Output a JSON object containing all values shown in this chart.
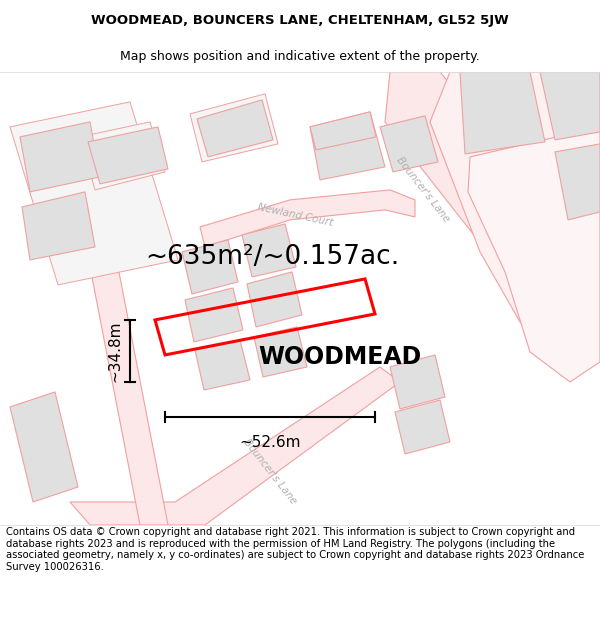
{
  "title_line1": "WOODMEAD, BOUNCERS LANE, CHELTENHAM, GL52 5JW",
  "title_line2": "Map shows position and indicative extent of the property.",
  "footer_text": "Contains OS data © Crown copyright and database right 2021. This information is subject to Crown copyright and database rights 2023 and is reproduced with the permission of HM Land Registry. The polygons (including the associated geometry, namely x, y co-ordinates) are subject to Crown copyright and database rights 2023 Ordnance Survey 100026316.",
  "property_label": "WOODMEAD",
  "area_label": "~635m²/~0.157ac.",
  "dim_width_label": "~52.6m",
  "dim_height_label": "~34.8m",
  "background_color": "#ffffff",
  "building_fill": "#e0e0e0",
  "building_stroke": "#f0a0a0",
  "road_fill": "#fce8e8",
  "road_stroke": "#f0a0a0",
  "property_color": "#ff0000",
  "label_color_road": "#b0b0b0",
  "title_fontsize": 9.5,
  "footer_fontsize": 7.2,
  "property_label_fontsize": 17,
  "area_label_fontsize": 19,
  "dim_fontsize": 11
}
